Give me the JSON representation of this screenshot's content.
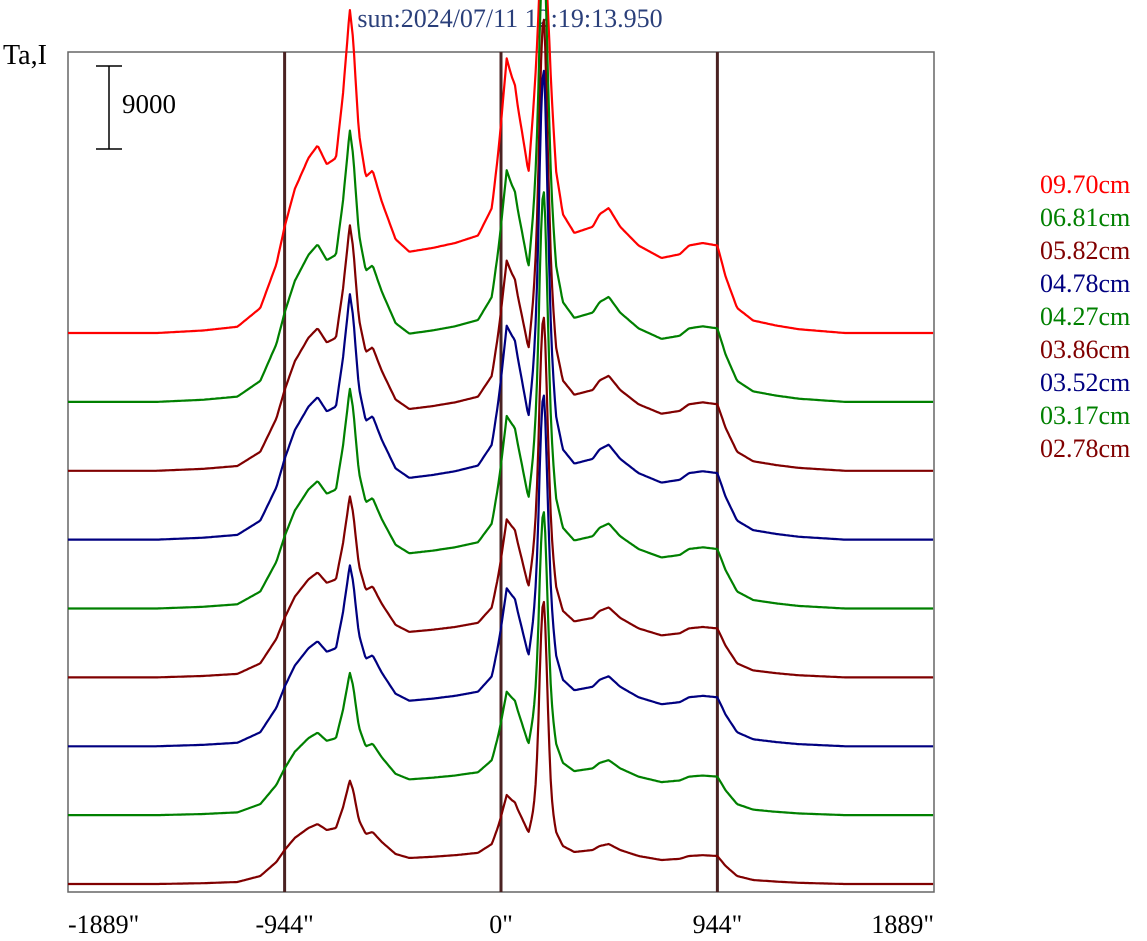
{
  "chart_data": {
    "type": "line",
    "title": "sun:2024/07/11 12:19:13.950",
    "ylabel": "Ta,I",
    "xlabel": "",
    "x_ticks": [
      {
        "value": -1889,
        "label": "-1889\""
      },
      {
        "value": -944,
        "label": "-944\""
      },
      {
        "value": 0,
        "label": "0\""
      },
      {
        "value": 944,
        "label": "944\""
      },
      {
        "value": 1889,
        "label": "1889\""
      }
    ],
    "xlim": [
      -1889,
      1889
    ],
    "vertical_reference_lines": [
      -944,
      0,
      944
    ],
    "scale_bar": {
      "value": 9000,
      "label": "9000"
    },
    "legend_placement": "right",
    "grid": false,
    "series": [
      {
        "name": "09.70cm",
        "color": "#ff0000",
        "peak_scale": 1.25,
        "sunspot_scale": 0.8,
        "blend_left_scale": 0.15
      },
      {
        "name": "06.81cm",
        "color": "#008000",
        "peak_scale": 1.05,
        "sunspot_scale": 1.0,
        "blend_left_scale": 0.35
      },
      {
        "name": "05.82cm",
        "color": "#800000",
        "peak_scale": 0.95,
        "sunspot_scale": 1.15,
        "blend_left_scale": 0.45
      },
      {
        "name": "04.78cm",
        "color": "#000080",
        "peak_scale": 0.95,
        "sunspot_scale": 1.25,
        "blend_left_scale": 0.7
      },
      {
        "name": "04.27cm",
        "color": "#008000",
        "peak_scale": 0.85,
        "sunspot_scale": 1.1,
        "blend_left_scale": 0.8
      },
      {
        "name": "03.86cm",
        "color": "#800000",
        "peak_scale": 0.7,
        "sunspot_scale": 1.0,
        "blend_left_scale": 0.8
      },
      {
        "name": "03.52cm",
        "color": "#000080",
        "peak_scale": 0.7,
        "sunspot_scale": 0.95,
        "blend_left_scale": 0.8
      },
      {
        "name": "03.17cm",
        "color": "#008000",
        "peak_scale": 0.55,
        "sunspot_scale": 0.9,
        "blend_left_scale": 0.8
      },
      {
        "name": "02.78cm",
        "color": "#800000",
        "peak_scale": 0.4,
        "sunspot_scale": 1.0,
        "blend_left_scale": 0.8
      }
    ],
    "base_profile_arcsec": [
      [
        -1889,
        0
      ],
      [
        -1500,
        0
      ],
      [
        -1300,
        2
      ],
      [
        -1150,
        5
      ],
      [
        -1050,
        20
      ],
      [
        -980,
        55
      ],
      [
        -944,
        85
      ],
      [
        -900,
        115
      ],
      [
        -840,
        140
      ],
      [
        -800,
        150
      ],
      [
        -760,
        135
      ],
      [
        -720,
        140
      ],
      [
        -690,
        190
      ],
      [
        -670,
        235
      ],
      [
        -660,
        260
      ],
      [
        -645,
        235
      ],
      [
        -620,
        160
      ],
      [
        -590,
        125
      ],
      [
        -560,
        130
      ],
      [
        -520,
        105
      ],
      [
        -460,
        75
      ],
      [
        -400,
        65
      ],
      [
        -300,
        68
      ],
      [
        -200,
        72
      ],
      [
        -100,
        78
      ],
      [
        -40,
        100
      ],
      [
        -15,
        140
      ],
      [
        0,
        170
      ],
      [
        25,
        230
      ],
      [
        60,
        220
      ],
      [
        100,
        160
      ],
      [
        120,
        130
      ],
      [
        150,
        200
      ],
      [
        170,
        250
      ],
      [
        190,
        260
      ],
      [
        210,
        220
      ],
      [
        240,
        130
      ],
      [
        270,
        95
      ],
      [
        320,
        80
      ],
      [
        400,
        85
      ],
      [
        430,
        95
      ],
      [
        470,
        100
      ],
      [
        520,
        85
      ],
      [
        600,
        70
      ],
      [
        700,
        60
      ],
      [
        780,
        63
      ],
      [
        820,
        70
      ],
      [
        880,
        72
      ],
      [
        944,
        70
      ],
      [
        980,
        45
      ],
      [
        1030,
        20
      ],
      [
        1100,
        10
      ],
      [
        1200,
        6
      ],
      [
        1300,
        3
      ],
      [
        1500,
        0
      ],
      [
        1889,
        0
      ]
    ]
  }
}
